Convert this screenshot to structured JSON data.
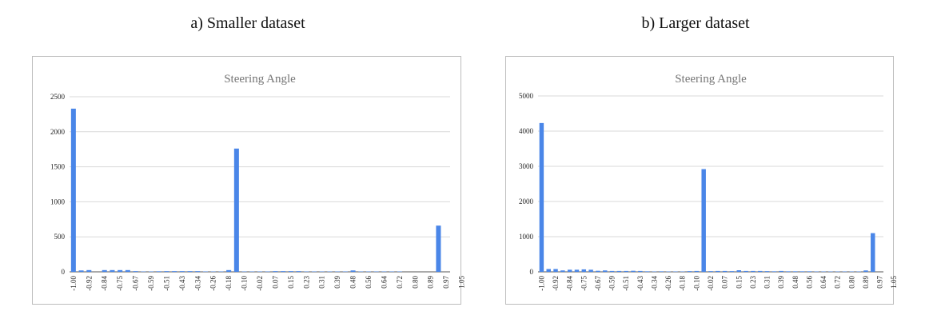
{
  "captions": {
    "left": "a) Smaller dataset",
    "right": "b) Larger dataset"
  },
  "colors": {
    "bar": "#4a86e8",
    "grid": "#d9d9d9",
    "axis": "#555555",
    "title": "#757575"
  },
  "chart_data": [
    {
      "type": "bar",
      "title": "Steering Angle",
      "xlabel": "",
      "ylabel": "",
      "ylim": [
        0,
        2500
      ],
      "yticks": [
        0,
        500,
        1000,
        1500,
        2000,
        2500
      ],
      "grid": true,
      "x_tick_labels": [
        "-1.00",
        "-0.92",
        "-0.84",
        "-0.75",
        "-0.67",
        "-0.59",
        "-0.51",
        "-0.43",
        "-0.34",
        "-0.26",
        "-0.18",
        "-0.10",
        "-0.02",
        "0.07",
        "0.15",
        "0.23",
        "0.31",
        "0.39",
        "0.48",
        "0.56",
        "0.64",
        "0.72",
        "0.80",
        "0.89",
        "0.97",
        "1.05"
      ],
      "values": [
        2330,
        20,
        25,
        0,
        25,
        25,
        25,
        25,
        10,
        5,
        5,
        8,
        10,
        10,
        10,
        10,
        10,
        5,
        5,
        5,
        25,
        1760,
        5,
        5,
        5,
        5,
        10,
        10,
        10,
        10,
        5,
        5,
        5,
        5,
        5,
        5,
        20,
        5,
        5,
        5,
        5,
        5,
        5,
        0,
        0,
        0,
        0,
        660,
        0
      ]
    },
    {
      "type": "bar",
      "title": "Steering Angle",
      "xlabel": "",
      "ylabel": "",
      "ylim": [
        0,
        5000
      ],
      "yticks": [
        0,
        1000,
        2000,
        3000,
        4000,
        5000
      ],
      "grid": true,
      "x_tick_labels": [
        "-1.00",
        "-0.92",
        "-0.84",
        "-0.75",
        "-0.67",
        "-0.59",
        "-0.51",
        "-0.43",
        "-0.34",
        "-0.26",
        "-0.18",
        "-0.10",
        "-0.02",
        "0.07",
        "0.15",
        "0.23",
        "0.31",
        "0.39",
        "0.48",
        "0.56",
        "0.64",
        "0.72",
        "0.80",
        "0.89",
        "0.97",
        "1.05"
      ],
      "values": [
        4230,
        80,
        80,
        40,
        60,
        60,
        70,
        60,
        30,
        40,
        25,
        25,
        25,
        30,
        25,
        15,
        10,
        15,
        10,
        10,
        10,
        20,
        25,
        2920,
        20,
        25,
        25,
        20,
        45,
        25,
        25,
        25,
        20,
        15,
        25,
        15,
        15,
        15,
        15,
        10,
        10,
        10,
        10,
        10,
        10,
        10,
        40,
        1100,
        0
      ]
    }
  ]
}
